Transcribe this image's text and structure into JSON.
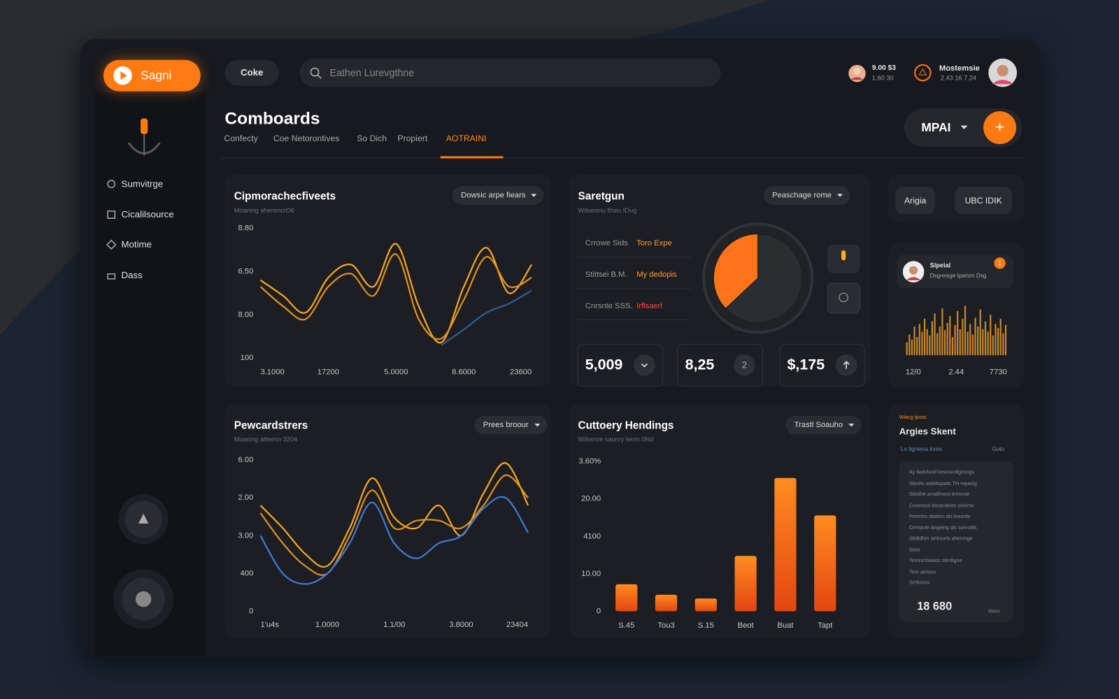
{
  "header": {
    "logo": "Sagni",
    "pill": "Coke",
    "search": "Eathen Lurevgthne",
    "user1": {
      "line1": "9.00 $3",
      "line2": "1.60 30"
    },
    "user2": {
      "name": "Mostemsie",
      "line2": "2.43 16 7.24"
    }
  },
  "sidebar": {
    "nav": [
      "Sumvitrge",
      "Cicalilsource",
      "Motime",
      "Dass"
    ]
  },
  "page": {
    "title": "Comboards",
    "tabs": [
      "Confecty",
      "Coe Netorontives",
      "So Dich",
      "Propiert",
      "AOTRAINI"
    ],
    "active_tab": 4,
    "selector": "MPAI",
    "add": "+"
  },
  "panels": [
    {
      "title": "Cipmorachecfiveets",
      "subtitle": "Moaning aherencrO6",
      "control": "Dowsic arpe fiears"
    },
    {
      "title": "Saretgun",
      "subtitle": "Wilsesiriu fiheu tDug",
      "control": "Peaschage rome",
      "rows": [
        [
          "Crrowe Sids",
          "Toro Expe"
        ],
        [
          "Stittsei B.M.",
          "My dedopis"
        ],
        [
          "Cnrsnte SSS.",
          "Irflsaerl"
        ]
      ],
      "stats": [
        "5,009",
        "8,25",
        "$,175"
      ],
      "stat_badge": "2"
    },
    {
      "buttons": [
        "Arigia",
        "UBC IDIK"
      ],
      "card_title": "Sipeial",
      "card_text": "Dsgreisge tparsm Dsg",
      "badge": "1"
    },
    {
      "title": "Pewcardstrers",
      "subtitle": "Moasing alteenn 3204",
      "control": "Prees broour"
    },
    {
      "title": "Cuttoery Hendings",
      "subtitle": "Wilsenre saunry lenm 0Nd",
      "control": "Trastl Soauho"
    },
    {
      "kicker": "Wiacg tposs",
      "title": "Argies Skent",
      "subtitle": "Lo tigniesa lores",
      "link": "Goto",
      "lines": [
        "Ay Iladsfund loneracdigrisogs",
        "Sbinhv anbitispads TH repasig",
        "Sbisthe arsafimoni tirinorse",
        "Crvenson boracdeies sinerse",
        "Pnmnhs daiitinn dis lireorde",
        "Cempute Angeing dis sorvoids",
        "Sbdidhrn sinbsoris ahenmge",
        "Gtrin",
        "Tenrnictiwaios slenfigne",
        "Tern ainisos",
        "Sinfotoss"
      ],
      "figure": "18 680",
      "more": "Moro"
    }
  ],
  "chart_data": [
    {
      "type": "line",
      "ylim": [
        0,
        100
      ],
      "y_labels": [
        "8.80",
        "6.50",
        "8.00",
        "100"
      ],
      "x_labels": [
        "3.1000",
        "17200",
        "5.0000",
        "8.6000",
        "23600"
      ],
      "series": [
        {
          "color": "#f5a623",
          "values": [
            60,
            48,
            35,
            62,
            72,
            55,
            88,
            40,
            12,
            55,
            85,
            50,
            72
          ]
        },
        {
          "color": "#e0901c",
          "values": [
            55,
            40,
            30,
            55,
            65,
            48,
            80,
            30,
            15,
            45,
            78,
            55,
            62
          ]
        },
        {
          "color": "#2f5f8f",
          "values": [
            null,
            null,
            null,
            null,
            null,
            null,
            null,
            null,
            10,
            22,
            35,
            42,
            52
          ]
        }
      ]
    },
    {
      "type": "pie",
      "values": [
        37,
        63
      ],
      "colors": [
        "#ff7418",
        "#2b2d31"
      ]
    },
    {
      "type": "bar",
      "ylim": [
        0,
        100
      ],
      "color": "#c98a2a",
      "x_labels": [
        "12/0",
        "2.44",
        "7730"
      ],
      "values": [
        25,
        40,
        30,
        55,
        35,
        60,
        45,
        70,
        50,
        38,
        65,
        80,
        42,
        55,
        90,
        48,
        62,
        75,
        35,
        58,
        85,
        50,
        70,
        95,
        45,
        60,
        40,
        72,
        55,
        88,
        50,
        65,
        45,
        78,
        38,
        60,
        52,
        70,
        42,
        58
      ]
    },
    {
      "type": "line",
      "ylim": [
        0,
        100
      ],
      "y_labels": [
        "6.00",
        "2.00",
        "3.00",
        "400",
        "0"
      ],
      "x_labels": [
        "1'u4s",
        "1.0000",
        "1.1/00",
        "3.8000",
        "23404"
      ],
      "series": [
        {
          "color": "#f5a623",
          "values": [
            70,
            55,
            38,
            30,
            55,
            88,
            62,
            55,
            70,
            50,
            78,
            98,
            70
          ]
        },
        {
          "color": "#e0901c",
          "values": [
            65,
            45,
            30,
            25,
            50,
            80,
            55,
            60,
            60,
            55,
            70,
            90,
            75
          ]
        },
        {
          "color": "#3f7ad6",
          "values": [
            50,
            25,
            18,
            25,
            45,
            72,
            45,
            35,
            45,
            50,
            68,
            75,
            52
          ]
        }
      ]
    },
    {
      "type": "bar",
      "ylim": [
        0,
        100
      ],
      "color": "#ff7a1a",
      "y_labels": [
        "3.60%",
        "20.00",
        "4100",
        "10.00",
        "0"
      ],
      "categories": [
        "S.45",
        "Tou3",
        "S.15",
        "Beot",
        "Buat",
        "Tapt"
      ],
      "values": [
        18,
        11,
        8.5,
        37,
        89,
        64
      ]
    }
  ]
}
